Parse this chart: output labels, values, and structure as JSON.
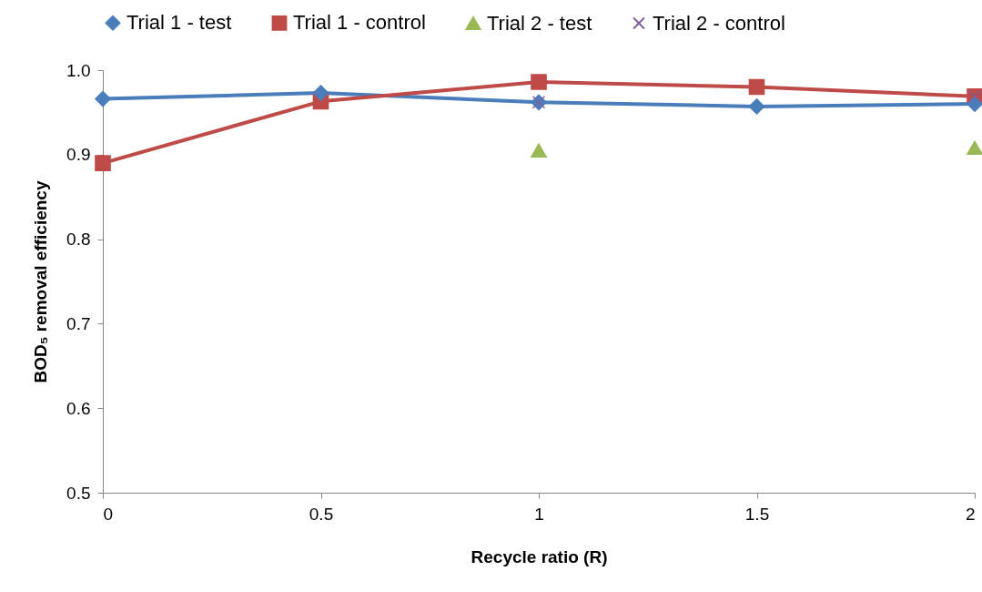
{
  "chart_data": {
    "type": "line",
    "xlabel": "Recycle ratio (R)",
    "ylabel": "BOD₅ removal efficiency",
    "x": [
      0,
      0.5,
      1,
      1.5,
      2
    ],
    "xlim": [
      0,
      2
    ],
    "xticks": [
      0,
      0.5,
      1,
      1.5,
      2
    ],
    "ylim": [
      0.5,
      1.0
    ],
    "yticks": [
      {
        "value": 0.5,
        "label": "0.5"
      },
      {
        "value": 0.6,
        "label": "0.6"
      },
      {
        "value": 0.7,
        "label": "0.7"
      },
      {
        "value": 0.8,
        "label": "0.8"
      },
      {
        "value": 0.9,
        "label": "0.9"
      },
      {
        "value": 1.0,
        "label": "1.0"
      }
    ],
    "grid": false,
    "legend": "top",
    "line_style": "solid",
    "series": [
      {
        "name": "Trial 1 - test",
        "color": "#4a7ebb",
        "marker": "diamond",
        "values": [
          0.966,
          0.973,
          0.962,
          0.957,
          0.96
        ]
      },
      {
        "name": "Trial 1 - control",
        "color": "#be4b48",
        "marker": "square",
        "values": [
          0.89,
          0.963,
          0.986,
          0.98,
          0.969
        ]
      },
      {
        "name": "Trial 2 - test",
        "type": "scatter",
        "color": "#98b954",
        "marker": "triangle",
        "values": [
          null,
          null,
          0.905,
          null,
          0.908
        ]
      },
      {
        "name": "Trial 2 - control",
        "type": "scatter",
        "color": "#7d60a0",
        "marker": "cross",
        "values": [
          null,
          null,
          0.962,
          null,
          0.969
        ]
      }
    ]
  }
}
